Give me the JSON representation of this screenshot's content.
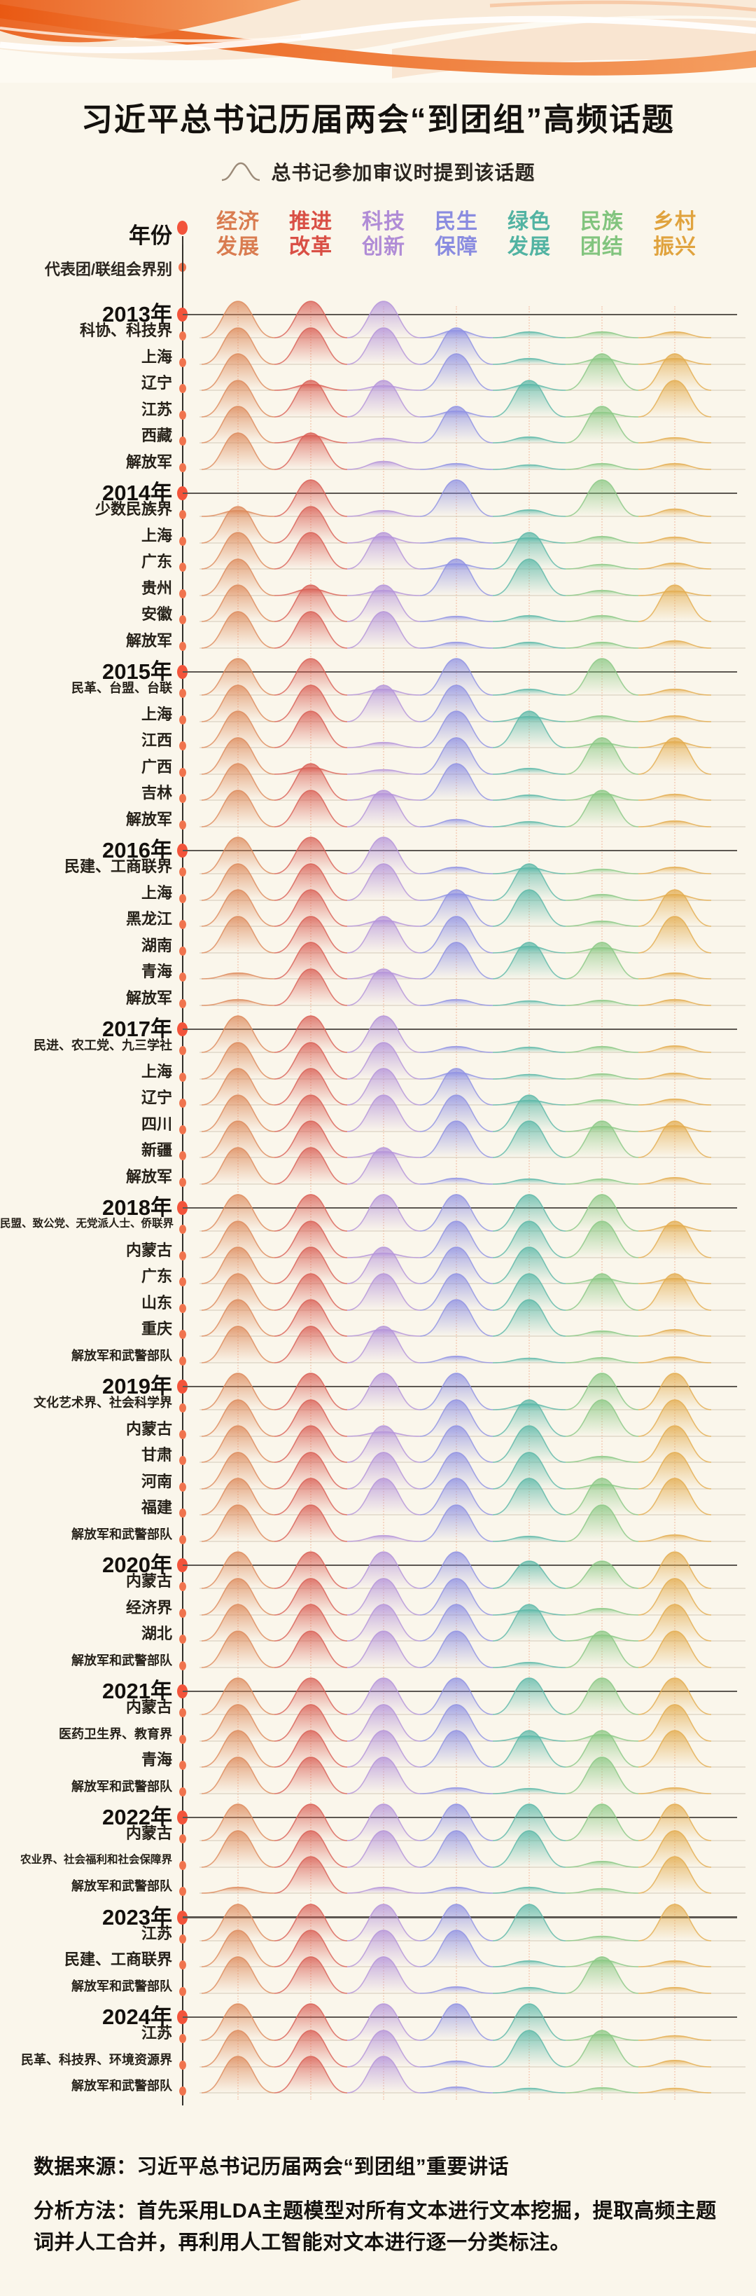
{
  "title": "习近平总书记历届两会“到团组”高频话题",
  "legend": {
    "label": "总书记参加审议时提到该话题"
  },
  "header": {
    "year_label": "年份",
    "group_label": "代表团/联组会界别"
  },
  "topics": [
    {
      "line1": "经济",
      "line2": "发展",
      "color": "#D97C50",
      "wave": "#DD8A5B"
    },
    {
      "line1": "推进",
      "line2": "改革",
      "color": "#D94F45",
      "wave": "#D95F55"
    },
    {
      "line1": "科技",
      "line2": "创新",
      "color": "#B08CD6",
      "wave": "#B493DA"
    },
    {
      "line1": "民生",
      "line2": "保障",
      "color": "#8A8CE0",
      "wave": "#8F91E3"
    },
    {
      "line1": "绿色",
      "line2": "发展",
      "color": "#52B3A2",
      "wave": "#5BB8A8"
    },
    {
      "line1": "民族",
      "line2": "团结",
      "color": "#82C47E",
      "wave": "#8AC884"
    },
    {
      "line1": "乡村",
      "line2": "振兴",
      "color": "#E0A33E",
      "wave": "#E3AC4F"
    }
  ],
  "footer": {
    "source": "数据来源：习近平总书记历届两会“到团组”重要讲话",
    "method": "分析方法：首先采用LDA主题模型对所有文本进行文本挖掘，提取高频主题词并人工合并，再利用人工智能对文本进行逐一分类标注。"
  },
  "chart_data": {
    "type": "area",
    "subtype": "ridgeline",
    "title": "习近平总书记历届两会“到团组”高频话题",
    "columns": [
      "经济发展",
      "推进改革",
      "科技创新",
      "民生保障",
      "绿色发展",
      "民族团结",
      "乡村振兴"
    ],
    "column_colors": [
      "#D97C50",
      "#D94F45",
      "#B08CD6",
      "#8A8CE0",
      "#52B3A2",
      "#82C47E",
      "#E0A33E"
    ],
    "row_axis_labels": [
      "年份",
      "代表团/联组会界别"
    ],
    "value_note": "relative bump height per topic, 0–1",
    "years": [
      {
        "year": "2013年",
        "rows": [
          {
            "label": "科协、科技界",
            "values": [
              1,
              1,
              1,
              0.2,
              0.16,
              0.16,
              0.16
            ]
          },
          {
            "label": "上海",
            "values": [
              1,
              1,
              1,
              1,
              0.16,
              0.16,
              0.16
            ]
          },
          {
            "label": "辽宁",
            "values": [
              1,
              0.16,
              0.12,
              1,
              0.16,
              1,
              1
            ]
          },
          {
            "label": "江苏",
            "values": [
              1,
              1,
              1,
              0.16,
              1,
              0.12,
              1
            ]
          },
          {
            "label": "西藏",
            "values": [
              1,
              0.2,
              0.1,
              1,
              0.16,
              1,
              0.14
            ]
          },
          {
            "label": "解放军",
            "values": [
              1,
              1,
              0.22,
              0.16,
              0.12,
              0.16,
              0.16
            ]
          }
        ]
      },
      {
        "year": "2014年",
        "rows": [
          {
            "label": "少数民族界",
            "values": [
              0.16,
              1,
              0.16,
              1,
              0.18,
              1,
              0.2
            ]
          },
          {
            "label": "上海",
            "values": [
              1,
              1,
              0.18,
              0.14,
              0.14,
              0.18,
              0.16
            ]
          },
          {
            "label": "广东",
            "values": [
              1,
              1,
              1,
              0.14,
              1,
              0.12,
              0.16
            ]
          },
          {
            "label": "贵州",
            "values": [
              1,
              0.18,
              0.14,
              1,
              1,
              0.14,
              0.12
            ]
          },
          {
            "label": "安徽",
            "values": [
              1,
              1,
              1,
              0.14,
              0.16,
              0.16,
              1
            ]
          },
          {
            "label": "解放军",
            "values": [
              1,
              1,
              1,
              0.16,
              0.16,
              0.16,
              0.2
            ]
          }
        ]
      },
      {
        "year": "2015年",
        "rows": [
          {
            "label": "民革、台盟、台联",
            "values": [
              1,
              1,
              0.16,
              1,
              0.16,
              1,
              0.16
            ]
          },
          {
            "label": "上海",
            "values": [
              1,
              1,
              1,
              1,
              0.14,
              0.16,
              0.16
            ]
          },
          {
            "label": "江西",
            "values": [
              1,
              1,
              0.14,
              1,
              1,
              0.12,
              0.16
            ]
          },
          {
            "label": "广西",
            "values": [
              1,
              0.18,
              0.12,
              1,
              0.16,
              1,
              1
            ]
          },
          {
            "label": "吉林",
            "values": [
              1,
              1,
              0.18,
              1,
              0.14,
              0.18,
              0.16
            ]
          },
          {
            "label": "解放军",
            "values": [
              1,
              1,
              1,
              0.2,
              0.14,
              1,
              0.16
            ]
          }
        ]
      },
      {
        "year": "2016年",
        "rows": [
          {
            "label": "民建、工商联界",
            "values": [
              1,
              1,
              1,
              0.18,
              0.16,
              0.12,
              0.18
            ]
          },
          {
            "label": "上海",
            "values": [
              1,
              1,
              1,
              0.18,
              1,
              0.16,
              0.16
            ]
          },
          {
            "label": "黑龙江",
            "values": [
              1,
              1,
              0.16,
              1,
              1,
              0.14,
              1
            ]
          },
          {
            "label": "湖南",
            "values": [
              1,
              1,
              1,
              1,
              0.18,
              0.14,
              1
            ]
          },
          {
            "label": "青海",
            "values": [
              0.16,
              1,
              0.18,
              1,
              1,
              1,
              0.16
            ]
          },
          {
            "label": "解放军",
            "values": [
              0.16,
              1,
              1,
              0.16,
              0.12,
              0.14,
              0.16
            ]
          }
        ]
      },
      {
        "year": "2017年",
        "rows": [
          {
            "label": "民进、农工党、九三学社",
            "values": [
              1,
              1,
              1,
              0.16,
              0.14,
              0.16,
              0.18
            ]
          },
          {
            "label": "上海",
            "values": [
              1,
              1,
              1,
              0.18,
              0.12,
              0.14,
              0.16
            ]
          },
          {
            "label": "辽宁",
            "values": [
              1,
              1,
              1,
              1,
              0.12,
              0.14,
              0.16
            ]
          },
          {
            "label": "四川",
            "values": [
              1,
              1,
              1,
              1,
              1,
              0.14,
              0.16
            ]
          },
          {
            "label": "新疆",
            "values": [
              1,
              1,
              0.16,
              1,
              1,
              1,
              1
            ]
          },
          {
            "label": "解放军",
            "values": [
              1,
              1,
              1,
              0.16,
              0.14,
              0.14,
              0.18
            ]
          }
        ]
      },
      {
        "year": "2018年",
        "rows": [
          {
            "label": "民盟、致公党、无党派人士、侨联界",
            "values": [
              1,
              1,
              1,
              1,
              1,
              1,
              0.16
            ]
          },
          {
            "label": "内蒙古",
            "values": [
              1,
              1,
              0.12,
              1,
              1,
              1,
              1
            ]
          },
          {
            "label": "广东",
            "values": [
              1,
              1,
              1,
              1,
              1,
              0.14,
              0.14
            ]
          },
          {
            "label": "山东",
            "values": [
              1,
              1,
              1,
              1,
              1,
              1,
              1
            ]
          },
          {
            "label": "重庆",
            "values": [
              1,
              1,
              0.18,
              1,
              1,
              0.14,
              0.18
            ]
          },
          {
            "label": "解放军和武警部队",
            "values": [
              1,
              1,
              1,
              0.18,
              0.12,
              0.14,
              0.16
            ]
          }
        ]
      },
      {
        "year": "2019年",
        "rows": [
          {
            "label": "文化艺术界、社会科学界",
            "values": [
              1,
              1,
              1,
              1,
              0.16,
              1,
              1
            ]
          },
          {
            "label": "内蒙古",
            "values": [
              1,
              1,
              0.12,
              1,
              1,
              1,
              1
            ]
          },
          {
            "label": "甘肃",
            "values": [
              1,
              1,
              1,
              1,
              1,
              0.16,
              1
            ]
          },
          {
            "label": "河南",
            "values": [
              1,
              1,
              1,
              1,
              1,
              0.12,
              1
            ]
          },
          {
            "label": "福建",
            "values": [
              1,
              1,
              1,
              1,
              1,
              1,
              1
            ]
          },
          {
            "label": "解放军和武警部队",
            "values": [
              1,
              1,
              0.16,
              1,
              0.14,
              1,
              0.18
            ]
          }
        ]
      },
      {
        "year": "2020年",
        "rows": [
          {
            "label": "内蒙古",
            "values": [
              1,
              1,
              1,
              1,
              0.75,
              0.75,
              1
            ]
          },
          {
            "label": "经济界",
            "values": [
              1,
              1,
              1,
              1,
              0.14,
              0.18,
              1
            ]
          },
          {
            "label": "湖北",
            "values": [
              1,
              1,
              1,
              1,
              1,
              0.16,
              1
            ]
          },
          {
            "label": "解放军和武警部队",
            "values": [
              1,
              1,
              1,
              1,
              0.14,
              1,
              1
            ]
          }
        ]
      },
      {
        "year": "2021年",
        "rows": [
          {
            "label": "内蒙古",
            "values": [
              1,
              1,
              1,
              1,
              1,
              1,
              1
            ]
          },
          {
            "label": "医药卫生界、教育界",
            "values": [
              1,
              1,
              1,
              1,
              0.14,
              0.18,
              1
            ]
          },
          {
            "label": "青海",
            "values": [
              1,
              1,
              1,
              1,
              1,
              1,
              1
            ]
          },
          {
            "label": "解放军和武警部队",
            "values": [
              1,
              1,
              1,
              0.16,
              0.14,
              1,
              0.16
            ]
          }
        ]
      },
      {
        "year": "2022年",
        "rows": [
          {
            "label": "内蒙古",
            "values": [
              1,
              1,
              1,
              1,
              1,
              1,
              1
            ]
          },
          {
            "label": "农业界、社会福利和社会保障界",
            "values": [
              1,
              1,
              1,
              1,
              1,
              0.16,
              1
            ]
          },
          {
            "label": "解放军和武警部队",
            "values": [
              0.16,
              1,
              0.16,
              0.16,
              0.16,
              0.12,
              1
            ]
          }
        ]
      },
      {
        "year": "2023年",
        "rows": [
          {
            "label": "江苏",
            "values": [
              1,
              1,
              1,
              1,
              1,
              0.12,
              1
            ]
          },
          {
            "label": "民建、工商联界",
            "values": [
              1,
              1,
              1,
              1,
              0.16,
              0.18,
              0.16
            ]
          },
          {
            "label": "解放军和武警部队",
            "values": [
              1,
              1,
              1,
              0.18,
              0.16,
              1,
              0.16
            ]
          }
        ]
      },
      {
        "year": "2024年",
        "rows": [
          {
            "label": "江苏",
            "values": [
              1,
              1,
              1,
              1,
              1,
              0.16,
              0.12
            ]
          },
          {
            "label": "民革、科技界、环境资源界",
            "values": [
              1,
              1,
              1,
              0.16,
              1,
              1,
              0.18
            ]
          },
          {
            "label": "解放军和武警部队",
            "values": [
              1,
              1,
              1,
              0.16,
              0.12,
              0.14,
              0.12
            ]
          }
        ]
      }
    ]
  }
}
